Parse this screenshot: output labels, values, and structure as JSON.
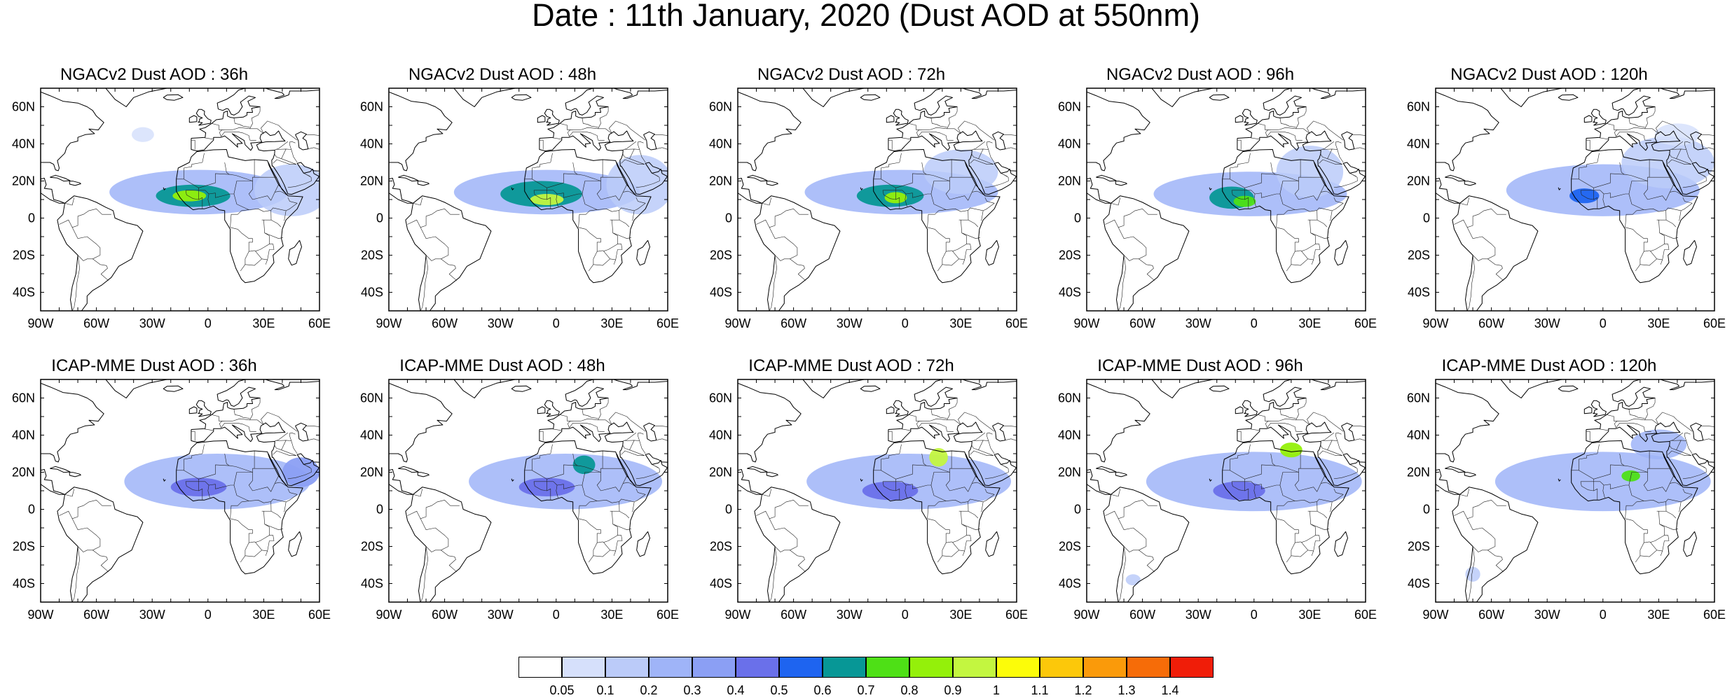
{
  "title": "Date : 11th January, 2020 (Dust AOD at 550nm)",
  "panels": [
    {
      "title": "NGACv2 Dust AOD : 36h",
      "model": "NGACv2",
      "lead_hours": 36,
      "plumes": [
        {
          "lon": -5,
          "lat": 14,
          "rx": 48,
          "ry": 12,
          "level": 3
        },
        {
          "lon": -8,
          "lat": 12,
          "rx": 20,
          "ry": 6,
          "level": 7
        },
        {
          "lon": -10,
          "lat": 12,
          "rx": 9,
          "ry": 3,
          "level": 9
        },
        {
          "lon": 45,
          "lat": 15,
          "rx": 20,
          "ry": 14,
          "level": 2
        },
        {
          "lon": -35,
          "lat": 45,
          "rx": 6,
          "ry": 4,
          "level": 1
        }
      ]
    },
    {
      "title": "NGACv2 Dust AOD : 48h",
      "model": "NGACv2",
      "lead_hours": 48,
      "plumes": [
        {
          "lon": -5,
          "lat": 14,
          "rx": 50,
          "ry": 12,
          "level": 3
        },
        {
          "lon": -8,
          "lat": 13,
          "rx": 22,
          "ry": 7,
          "level": 7
        },
        {
          "lon": -5,
          "lat": 10,
          "rx": 9,
          "ry": 3,
          "level": 10
        },
        {
          "lon": 45,
          "lat": 18,
          "rx": 18,
          "ry": 16,
          "level": 2
        }
      ]
    },
    {
      "title": "NGACv2 Dust AOD : 72h",
      "model": "NGACv2",
      "lead_hours": 72,
      "plumes": [
        {
          "lon": -2,
          "lat": 14,
          "rx": 52,
          "ry": 12,
          "level": 3
        },
        {
          "lon": -8,
          "lat": 12,
          "rx": 18,
          "ry": 6,
          "level": 7
        },
        {
          "lon": -5,
          "lat": 11,
          "rx": 6,
          "ry": 3,
          "level": 9
        },
        {
          "lon": 30,
          "lat": 25,
          "rx": 20,
          "ry": 12,
          "level": 2
        }
      ]
    },
    {
      "title": "NGACv2 Dust AOD : 96h",
      "model": "NGACv2",
      "lead_hours": 96,
      "plumes": [
        {
          "lon": -2,
          "lat": 13,
          "rx": 52,
          "ry": 12,
          "level": 3
        },
        {
          "lon": -12,
          "lat": 11,
          "rx": 12,
          "ry": 6,
          "level": 7
        },
        {
          "lon": -5,
          "lat": 9,
          "rx": 6,
          "ry": 3,
          "level": 8
        },
        {
          "lon": 30,
          "lat": 25,
          "rx": 18,
          "ry": 14,
          "level": 2
        }
      ]
    },
    {
      "title": "NGACv2 Dust AOD : 120h",
      "model": "NGACv2",
      "lead_hours": 120,
      "plumes": [
        {
          "lon": 0,
          "lat": 15,
          "rx": 52,
          "ry": 14,
          "level": 3
        },
        {
          "lon": -10,
          "lat": 12,
          "rx": 8,
          "ry": 4,
          "level": 6
        },
        {
          "lon": 35,
          "lat": 30,
          "rx": 25,
          "ry": 14,
          "level": 2
        },
        {
          "lon": 40,
          "lat": 45,
          "rx": 12,
          "ry": 6,
          "level": 1
        }
      ]
    },
    {
      "title": "ICAP-MME Dust AOD : 36h",
      "model": "ICAP-MME",
      "lead_hours": 36,
      "plumes": [
        {
          "lon": 5,
          "lat": 15,
          "rx": 50,
          "ry": 15,
          "level": 3
        },
        {
          "lon": -5,
          "lat": 12,
          "rx": 15,
          "ry": 5,
          "level": 5
        },
        {
          "lon": 50,
          "lat": 20,
          "rx": 10,
          "ry": 8,
          "level": 4
        }
      ]
    },
    {
      "title": "ICAP-MME Dust AOD : 48h",
      "model": "ICAP-MME",
      "lead_hours": 48,
      "plumes": [
        {
          "lon": 5,
          "lat": 15,
          "rx": 52,
          "ry": 15,
          "level": 3
        },
        {
          "lon": -5,
          "lat": 12,
          "rx": 15,
          "ry": 5,
          "level": 5
        },
        {
          "lon": 15,
          "lat": 24,
          "rx": 6,
          "ry": 5,
          "level": 7
        }
      ]
    },
    {
      "title": "ICAP-MME Dust AOD : 72h",
      "model": "ICAP-MME",
      "lead_hours": 72,
      "plumes": [
        {
          "lon": 2,
          "lat": 15,
          "rx": 55,
          "ry": 15,
          "level": 3
        },
        {
          "lon": -8,
          "lat": 10,
          "rx": 15,
          "ry": 5,
          "level": 5
        },
        {
          "lon": 18,
          "lat": 28,
          "rx": 5,
          "ry": 5,
          "level": 10
        }
      ]
    },
    {
      "title": "ICAP-MME Dust AOD : 96h",
      "model": "ICAP-MME",
      "lead_hours": 96,
      "plumes": [
        {
          "lon": 0,
          "lat": 15,
          "rx": 58,
          "ry": 16,
          "level": 3
        },
        {
          "lon": -8,
          "lat": 10,
          "rx": 14,
          "ry": 5,
          "level": 5
        },
        {
          "lon": 20,
          "lat": 32,
          "rx": 6,
          "ry": 4,
          "level": 9
        },
        {
          "lon": -65,
          "lat": -38,
          "rx": 4,
          "ry": 3,
          "level": 2
        }
      ]
    },
    {
      "title": "ICAP-MME Dust AOD : 120h",
      "model": "ICAP-MME",
      "lead_hours": 120,
      "plumes": [
        {
          "lon": 0,
          "lat": 15,
          "rx": 58,
          "ry": 16,
          "level": 3
        },
        {
          "lon": 15,
          "lat": 18,
          "rx": 5,
          "ry": 3,
          "level": 8
        },
        {
          "lon": 30,
          "lat": 35,
          "rx": 15,
          "ry": 8,
          "level": 3
        },
        {
          "lon": -70,
          "lat": -35,
          "rx": 4,
          "ry": 4,
          "level": 2
        }
      ]
    }
  ],
  "axes": {
    "lon_ticks": [
      "90W",
      "60W",
      "30W",
      "0",
      "30E",
      "60E"
    ],
    "lon_values": [
      -90,
      -60,
      -30,
      0,
      30,
      60
    ],
    "lat_ticks": [
      "60N",
      "40N",
      "20N",
      "0",
      "20S",
      "40S"
    ],
    "lat_values": [
      60,
      40,
      20,
      0,
      -20,
      -40
    ],
    "lon_range": [
      -90,
      60
    ],
    "lat_range": [
      -50,
      70
    ]
  },
  "colorbar": {
    "labels": [
      "0.05",
      "0.1",
      "0.2",
      "0.3",
      "0.4",
      "0.5",
      "0.6",
      "0.7",
      "0.8",
      "0.9",
      "1",
      "1.1",
      "1.2",
      "1.3",
      "1.4"
    ],
    "colors": [
      "#ffffff",
      "#d6e0fb",
      "#bbcbf9",
      "#9fb4f8",
      "#8b9ff4",
      "#6a70ea",
      "#1e64f0",
      "#079796",
      "#4ee016",
      "#94f00a",
      "#c3f640",
      "#fcfc09",
      "#fcc80a",
      "#fa9a0a",
      "#f66c08",
      "#f01d08"
    ]
  }
}
